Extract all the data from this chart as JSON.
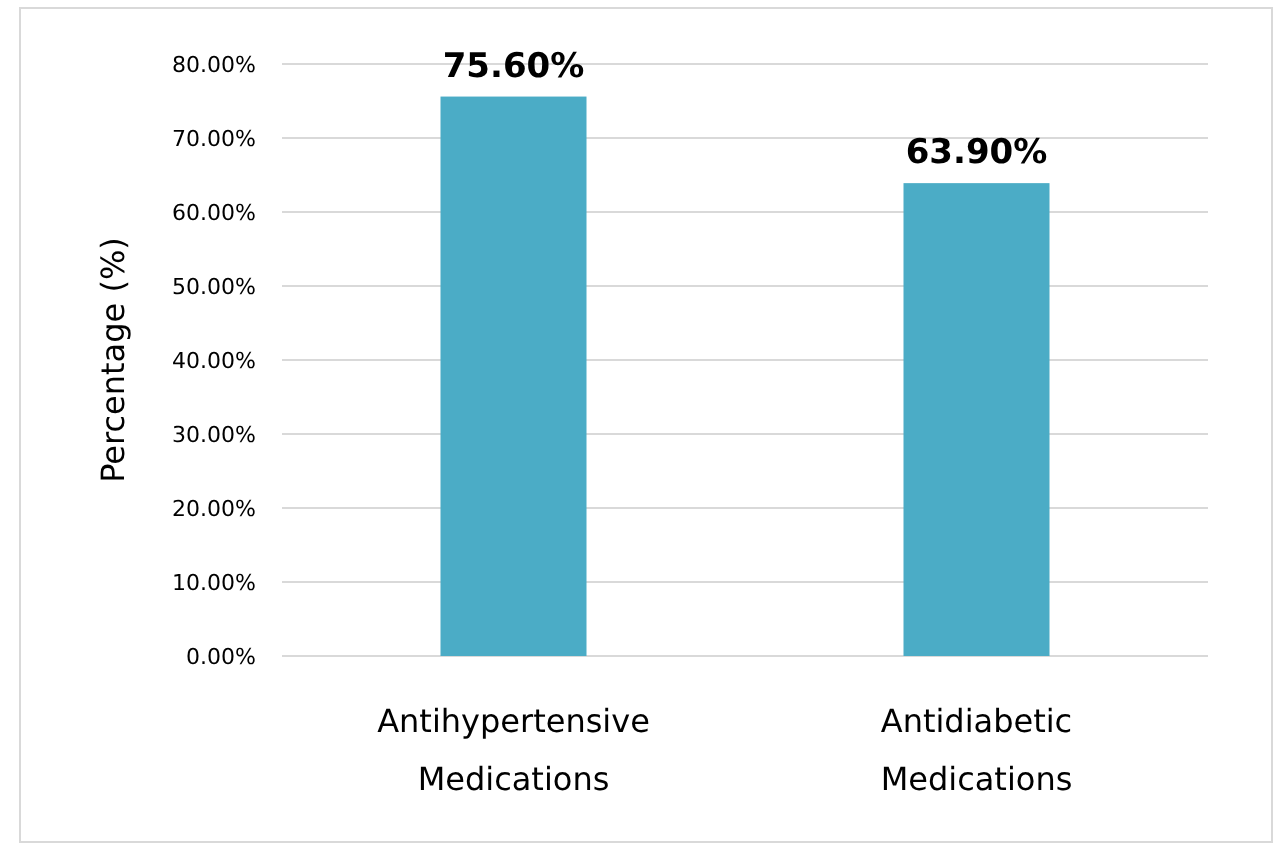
{
  "chart_data": {
    "type": "bar",
    "ylabel": "Percentage (%)",
    "categories": [
      "Antihypertensive Medications",
      "Antidiabetic Medications"
    ],
    "values": [
      75.6,
      63.9
    ],
    "color": "#4bacc6",
    "value_labels": [
      "75.60%",
      "63.90%"
    ],
    "ylim": [
      0,
      80
    ],
    "yticks": [
      {
        "value": 0,
        "label": "0.00%"
      },
      {
        "value": 10,
        "label": "10.00%"
      },
      {
        "value": 20,
        "label": "20.00%"
      },
      {
        "value": 30,
        "label": "30.00%"
      },
      {
        "value": 40,
        "label": "40.00%"
      },
      {
        "value": 50,
        "label": "50.00%"
      },
      {
        "value": 60,
        "label": "60.00%"
      },
      {
        "value": 70,
        "label": "70.00%"
      },
      {
        "value": 80,
        "label": "80.00%"
      }
    ],
    "grid": "y"
  }
}
